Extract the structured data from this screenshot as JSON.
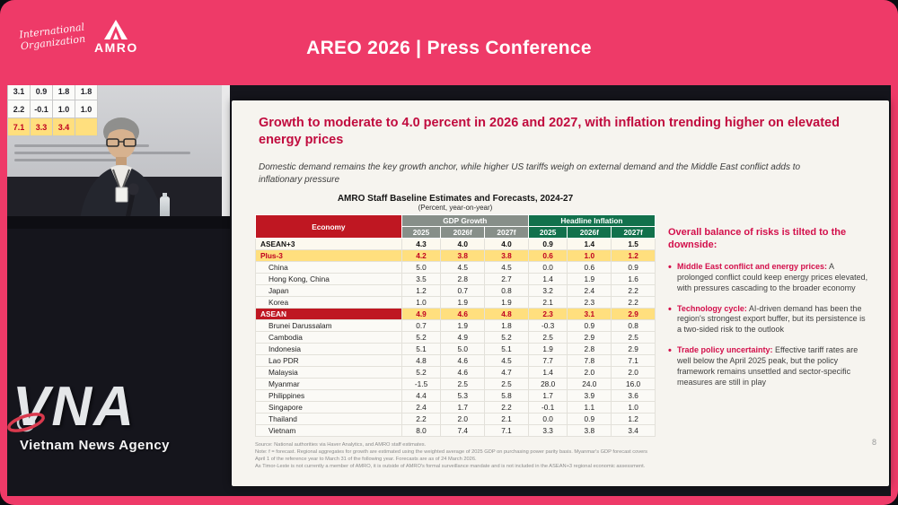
{
  "header": {
    "title": "AREO 2026 | Press Conference",
    "logo": {
      "script_line1": "International",
      "script_line2": "Organization",
      "name": "AMRO"
    }
  },
  "video": {
    "projection_rows": [
      [
        "3.1",
        "0.9",
        "1.8",
        "1.8"
      ],
      [
        "2.2",
        "-0.1",
        "1.0",
        "1.0"
      ],
      [
        "7.1",
        "3.3",
        "3.4",
        ""
      ]
    ]
  },
  "slide": {
    "title": "Growth to moderate to 4.0 percent in 2026 and 2027, with inflation trending higher on elevated energy prices",
    "subtitle": "Domestic demand remains the key growth anchor, while higher US tariffs weigh on external demand and the Middle East conflict adds to inflationary pressure",
    "table": {
      "title": "AMRO Staff Baseline Estimates and Forecasts, 2024-27",
      "unit_note": "(Percent, year-on-year)",
      "headers": {
        "economy": "Economy",
        "gdp": "GDP Growth",
        "inflation": "Headline Inflation"
      },
      "years": [
        "2025",
        "2026f",
        "2027f"
      ],
      "rows": [
        {
          "economy": "ASEAN+3",
          "style": "agg",
          "gdp": [
            "4.3",
            "4.0",
            "4.0"
          ],
          "inflation": [
            "0.9",
            "1.4",
            "1.5"
          ]
        },
        {
          "economy": "Plus-3",
          "style": "hl",
          "gdp": [
            "4.2",
            "3.8",
            "3.8"
          ],
          "inflation": [
            "0.6",
            "1.0",
            "1.2"
          ]
        },
        {
          "economy": "China",
          "style": "member",
          "gdp": [
            "5.0",
            "4.5",
            "4.5"
          ],
          "inflation": [
            "0.0",
            "0.6",
            "0.9"
          ]
        },
        {
          "economy": "Hong Kong, China",
          "style": "member",
          "gdp": [
            "3.5",
            "2.8",
            "2.7"
          ],
          "inflation": [
            "1.4",
            "1.9",
            "1.6"
          ]
        },
        {
          "economy": "Japan",
          "style": "member",
          "gdp": [
            "1.2",
            "0.7",
            "0.8"
          ],
          "inflation": [
            "3.2",
            "2.4",
            "2.2"
          ]
        },
        {
          "economy": "Korea",
          "style": "member",
          "gdp": [
            "1.0",
            "1.9",
            "1.9"
          ],
          "inflation": [
            "2.1",
            "2.3",
            "2.2"
          ]
        },
        {
          "economy": "ASEAN",
          "style": "hl2",
          "gdp": [
            "4.9",
            "4.6",
            "4.8"
          ],
          "inflation": [
            "2.3",
            "3.1",
            "2.9"
          ]
        },
        {
          "economy": "Brunei Darussalam",
          "style": "member",
          "gdp": [
            "0.7",
            "1.9",
            "1.8"
          ],
          "inflation": [
            "-0.3",
            "0.9",
            "0.8"
          ]
        },
        {
          "economy": "Cambodia",
          "style": "member",
          "gdp": [
            "5.2",
            "4.9",
            "5.2"
          ],
          "inflation": [
            "2.5",
            "2.9",
            "2.5"
          ]
        },
        {
          "economy": "Indonesia",
          "style": "member",
          "gdp": [
            "5.1",
            "5.0",
            "5.1"
          ],
          "inflation": [
            "1.9",
            "2.8",
            "2.9"
          ]
        },
        {
          "economy": "Lao PDR",
          "style": "member",
          "gdp": [
            "4.8",
            "4.6",
            "4.5"
          ],
          "inflation": [
            "7.7",
            "7.8",
            "7.1"
          ]
        },
        {
          "economy": "Malaysia",
          "style": "member",
          "gdp": [
            "5.2",
            "4.6",
            "4.7"
          ],
          "inflation": [
            "1.4",
            "2.0",
            "2.0"
          ]
        },
        {
          "economy": "Myanmar",
          "style": "member",
          "gdp": [
            "-1.5",
            "2.5",
            "2.5"
          ],
          "inflation": [
            "28.0",
            "24.0",
            "16.0"
          ]
        },
        {
          "economy": "Philippines",
          "style": "member",
          "gdp": [
            "4.4",
            "5.3",
            "5.8"
          ],
          "inflation": [
            "1.7",
            "3.9",
            "3.6"
          ]
        },
        {
          "economy": "Singapore",
          "style": "member",
          "gdp": [
            "2.4",
            "1.7",
            "2.2"
          ],
          "inflation": [
            "-0.1",
            "1.1",
            "1.0"
          ]
        },
        {
          "economy": "Thailand",
          "style": "member",
          "gdp": [
            "2.2",
            "2.0",
            "2.1"
          ],
          "inflation": [
            "0.0",
            "0.9",
            "1.2"
          ]
        },
        {
          "economy": "Vietnam",
          "style": "member",
          "gdp": [
            "8.0",
            "7.4",
            "7.1"
          ],
          "inflation": [
            "3.3",
            "3.8",
            "3.4"
          ]
        }
      ]
    },
    "risks": {
      "heading": "Overall balance of risks is tilted to the downside:",
      "bullets": [
        {
          "lead": "Middle East conflict and energy prices:",
          "text": " A prolonged conflict could keep energy prices elevated, with pressures cascading to the broader economy"
        },
        {
          "lead": "Technology cycle:",
          "text": " AI-driven demand has been the region's strongest export buffer, but its persistence is a two-sided risk to the outlook"
        },
        {
          "lead": "Trade policy uncertainty:",
          "text": " Effective tariff rates are well below the April 2025 peak, but the policy framework remains unsettled and sector-specific measures are still in play"
        }
      ]
    },
    "footnotes": [
      "Source: National authorities via Haver Analytics, and AMRO staff estimates.",
      "Note: f = forecast. Regional aggregates for growth are estimated using the weighted average of 2025 GDP on purchasing power parity basis. Myanmar's GDP forecast covers April 1 of the reference year to March 31 of the following year. Forecasts are as of 24 March 2026.",
      "As Timor-Leste is not currently a member of AMRO, it is outside of AMRO's formal surveillance mandate and is not included in the ASEAN+3 regional economic assessment."
    ],
    "page_number": "8"
  },
  "watermark": {
    "logo": "VNA",
    "caption": "Vietnam News Agency"
  }
}
